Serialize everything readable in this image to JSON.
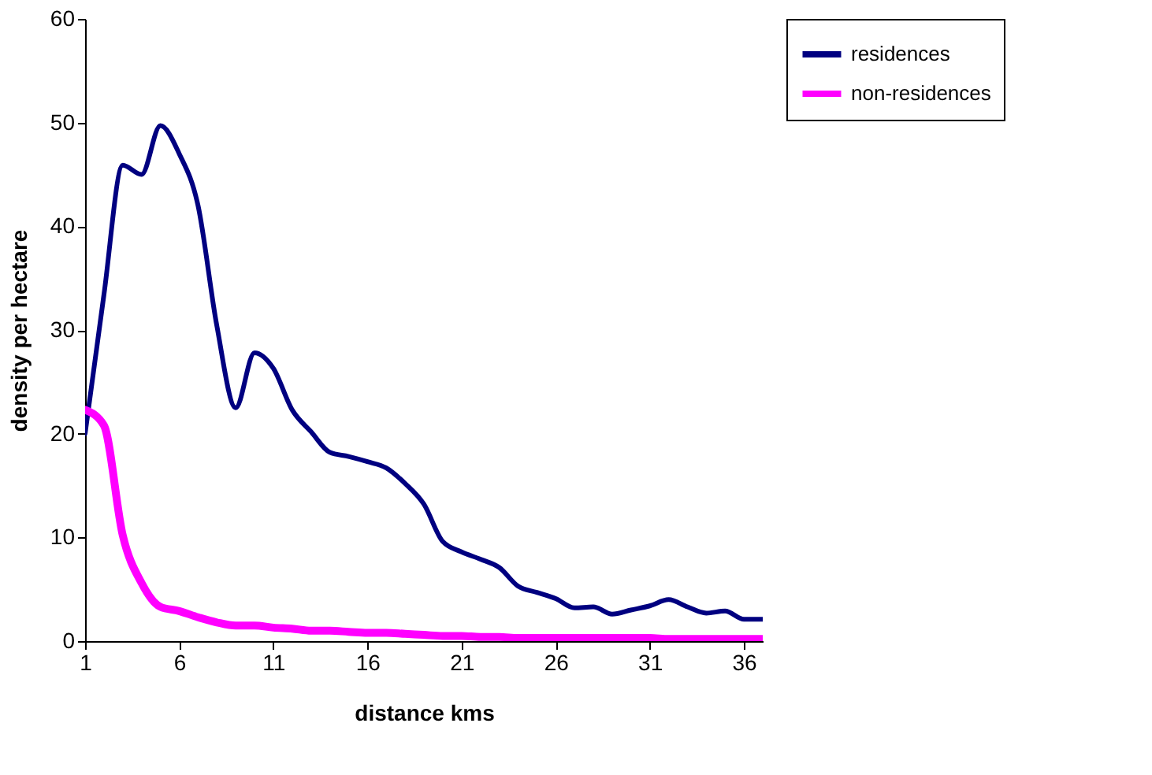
{
  "chart_data": {
    "type": "line",
    "xlabel": "distance kms",
    "ylabel": "density  per hectare",
    "x": [
      1,
      2,
      3,
      4,
      5,
      6,
      7,
      8,
      9,
      10,
      11,
      12,
      13,
      14,
      15,
      16,
      17,
      18,
      19,
      20,
      21,
      22,
      23,
      24,
      25,
      26,
      27,
      28,
      29,
      30,
      31,
      32,
      33,
      34,
      35,
      36,
      37
    ],
    "series": [
      {
        "name": "residences",
        "color": "#000080",
        "values": [
          20,
          33.4,
          45.9,
          45,
          49.7,
          47,
          42,
          30.4,
          22.5,
          27.8,
          26.3,
          22.3,
          20.2,
          18.2,
          17.8,
          17.3,
          16.7,
          15.2,
          13.2,
          9.6,
          8.6,
          7.9,
          7.1,
          5.3,
          4.7,
          4.1,
          3.2,
          3.3,
          2.6,
          3.0,
          3.4,
          4.0,
          3.3,
          2.7,
          2.9,
          2.1,
          2.1
        ]
      },
      {
        "name": "non-residences",
        "color": "#ff00ff",
        "values": [
          22.3,
          20.8,
          10.2,
          5.6,
          3.3,
          2.9,
          2.3,
          1.8,
          1.5,
          1.5,
          1.3,
          1.2,
          1.0,
          1.0,
          0.9,
          0.8,
          0.8,
          0.7,
          0.6,
          0.5,
          0.5,
          0.4,
          0.4,
          0.3,
          0.3,
          0.3,
          0.3,
          0.3,
          0.3,
          0.3,
          0.3,
          0.2,
          0.2,
          0.2,
          0.2,
          0.2,
          0.2
        ]
      }
    ],
    "xlim": [
      1,
      37
    ],
    "xticks": [
      1,
      6,
      11,
      16,
      21,
      26,
      31,
      36
    ],
    "ylim": [
      0,
      60
    ],
    "yticks": [
      0,
      10,
      20,
      30,
      40,
      50,
      60
    ],
    "grid": false,
    "legend": "right",
    "marker": "none",
    "line_style": "solid"
  }
}
